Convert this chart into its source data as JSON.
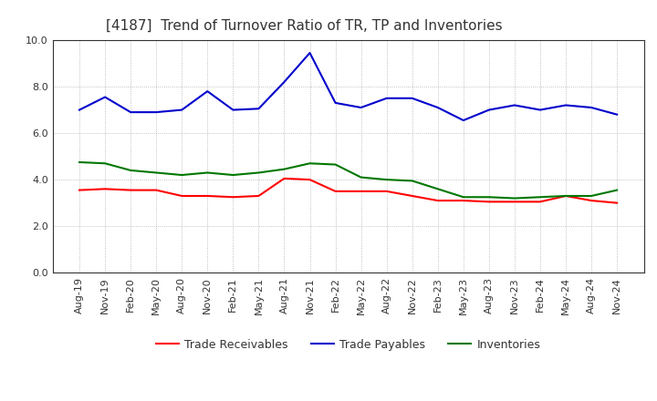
{
  "title": "[4187]  Trend of Turnover Ratio of TR, TP and Inventories",
  "xlabels": [
    "Aug-19",
    "Nov-19",
    "Feb-20",
    "May-20",
    "Aug-20",
    "Nov-20",
    "Feb-21",
    "May-21",
    "Aug-21",
    "Nov-21",
    "Feb-22",
    "May-22",
    "Aug-22",
    "Nov-22",
    "Feb-23",
    "May-23",
    "Aug-23",
    "Nov-23",
    "Feb-24",
    "May-24",
    "Aug-24",
    "Nov-24"
  ],
  "trade_receivables": [
    3.55,
    3.6,
    3.55,
    3.55,
    3.3,
    3.3,
    3.25,
    3.3,
    4.05,
    4.0,
    3.5,
    3.5,
    3.5,
    3.3,
    3.1,
    3.1,
    3.05,
    3.05,
    3.05,
    3.3,
    3.1,
    3.0
  ],
  "trade_payables": [
    7.0,
    7.55,
    6.9,
    6.9,
    7.0,
    7.8,
    7.0,
    7.05,
    8.2,
    9.45,
    7.3,
    7.1,
    7.5,
    7.5,
    7.1,
    6.55,
    7.0,
    7.2,
    7.0,
    7.2,
    7.1,
    6.8
  ],
  "inventories": [
    4.75,
    4.7,
    4.4,
    4.3,
    4.2,
    4.3,
    4.2,
    4.3,
    4.45,
    4.7,
    4.65,
    4.1,
    4.0,
    3.95,
    3.6,
    3.25,
    3.25,
    3.2,
    3.25,
    3.3,
    3.3,
    3.55
  ],
  "ylim": [
    0.0,
    10.0
  ],
  "yticks": [
    0.0,
    2.0,
    4.0,
    6.0,
    8.0,
    10.0
  ],
  "line_colors": {
    "trade_receivables": "#ff0000",
    "trade_payables": "#0000cc",
    "inventories": "#007700"
  },
  "legend_labels": [
    "Trade Receivables",
    "Trade Payables",
    "Inventories"
  ],
  "background_color": "#ffffff",
  "grid_color": "#999999",
  "title_fontsize": 11,
  "tick_fontsize": 8,
  "legend_fontsize": 9,
  "line_width": 1.5
}
